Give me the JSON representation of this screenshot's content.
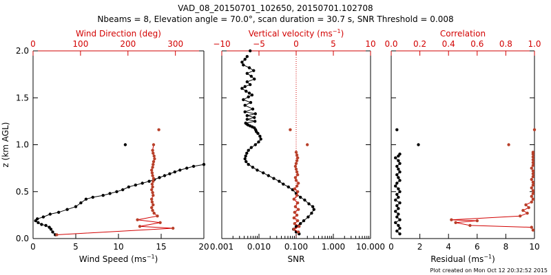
{
  "header": {
    "title_line1": "VAD_08_20150701_102650, 20150701.102708",
    "title_line2": "Nbeams = 8, Elevation angle = 70.0°, scan duration = 30.7 s, SNR Threshold = 0.008"
  },
  "footer": {
    "stamp": "Plot created on Mon Oct 12 20:32:52 2015"
  },
  "colors": {
    "black": "#000000",
    "red": "#d20000",
    "red_marker": "#b8402a"
  },
  "chart_data": [
    {
      "type": "line",
      "panel": "left",
      "ylabel": "z (km AGL)",
      "ylim": [
        0,
        2.0
      ],
      "yticks": [
        0.0,
        0.5,
        1.0,
        1.5,
        2.0
      ],
      "ytick_labels": [
        "0.0",
        "0.5",
        "1.0",
        "1.5",
        "2.0"
      ],
      "bottom_axis": {
        "label_text": "Wind Speed (ms",
        "label_sup": "−1",
        "label_tail": ")",
        "range": [
          0,
          20
        ],
        "ticks": [
          0,
          5,
          10,
          15,
          20
        ],
        "tick_labels": [
          "0",
          "5",
          "10",
          "15",
          "20"
        ],
        "color": "#000000"
      },
      "top_axis": {
        "label_text": "Wind Direction (deg)",
        "label_sup": "",
        "label_tail": "",
        "range": [
          0,
          360
        ],
        "ticks": [
          0,
          100,
          200,
          300
        ],
        "tick_labels": [
          "0",
          "100",
          "200",
          "300"
        ],
        "color": "#d20000"
      },
      "series": [
        {
          "axis": "bottom",
          "color": "#000000",
          "x": [
            2.6,
            2.3,
            2.1,
            1.9,
            1.5,
            1.0,
            0.6,
            0.3,
            0.5,
            1.2,
            2.0,
            3.0,
            4.0,
            5.0,
            5.6,
            6.2,
            7.0,
            8.2,
            9.0,
            9.8,
            10.5,
            11.2,
            12.0,
            12.8,
            13.6,
            14.2,
            14.8,
            15.4,
            16.0,
            16.6,
            17.2,
            18.0,
            18.8,
            20.0
          ],
          "y": [
            0.04,
            0.07,
            0.1,
            0.12,
            0.14,
            0.15,
            0.17,
            0.19,
            0.21,
            0.23,
            0.26,
            0.28,
            0.31,
            0.34,
            0.38,
            0.42,
            0.44,
            0.46,
            0.48,
            0.5,
            0.52,
            0.55,
            0.57,
            0.59,
            0.61,
            0.63,
            0.65,
            0.67,
            0.69,
            0.71,
            0.73,
            0.75,
            0.77,
            0.79
          ]
        },
        {
          "axis": "bottom",
          "color": "#000000",
          "isolated": true,
          "x": [
            10.8
          ],
          "y": [
            1.0
          ]
        },
        {
          "axis": "top",
          "color": "#d20000",
          "marker_color": "#b8402a",
          "x": [
            50,
            295,
            225,
            268,
            220,
            262,
            255,
            252,
            250,
            253,
            251,
            250,
            253,
            252,
            250,
            252,
            251,
            253,
            254,
            252,
            251,
            250,
            252,
            253,
            254,
            256,
            255,
            253,
            252,
            254
          ],
          "y": [
            0.04,
            0.11,
            0.13,
            0.17,
            0.2,
            0.24,
            0.27,
            0.3,
            0.33,
            0.36,
            0.39,
            0.42,
            0.46,
            0.49,
            0.52,
            0.55,
            0.58,
            0.61,
            0.64,
            0.67,
            0.7,
            0.73,
            0.76,
            0.79,
            0.82,
            0.85,
            0.88,
            0.91,
            0.94,
            1.0
          ]
        },
        {
          "axis": "top",
          "color": "#b8402a",
          "isolated": true,
          "x": [
            265
          ],
          "y": [
            1.16
          ]
        }
      ]
    },
    {
      "type": "line",
      "panel": "middle",
      "ylim": [
        0,
        2.0
      ],
      "yticks": [
        0.0,
        0.5,
        1.0,
        1.5,
        2.0
      ],
      "bottom_axis": {
        "label_text": "SNR",
        "label_sup": "",
        "label_tail": "",
        "scale": "log",
        "range": [
          0.001,
          10.0
        ],
        "ticks": [
          0.001,
          0.01,
          0.1,
          1.0,
          10.0
        ],
        "tick_labels": [
          "0.001",
          "0.010",
          "0.100",
          "1.000",
          "10.000"
        ],
        "color": "#000000"
      },
      "top_axis": {
        "label_text": "Vertical velocity (ms",
        "label_sup": "−1",
        "label_tail": ")",
        "range": [
          -10,
          10
        ],
        "ticks": [
          -10,
          -5,
          0,
          5,
          10
        ],
        "tick_labels": [
          "−10",
          "−5",
          "0",
          "5",
          "10"
        ],
        "color": "#d20000"
      },
      "reference_line": {
        "axis": "top",
        "x": 0,
        "style": "dotted",
        "color": "#d20000"
      },
      "series": [
        {
          "axis": "bottom",
          "color": "#000000",
          "x": [
            0.12,
            0.1,
            0.085,
            0.1,
            0.13,
            0.16,
            0.21,
            0.26,
            0.3,
            0.28,
            0.22,
            0.17,
            0.13,
            0.1,
            0.08,
            0.062,
            0.045,
            0.035,
            0.025,
            0.018,
            0.013,
            0.009,
            0.0068,
            0.0052,
            0.0045,
            0.0042,
            0.0044,
            0.0047,
            0.0052,
            0.0062,
            0.008,
            0.0098,
            0.0112,
            0.0106,
            0.0094,
            0.0085,
            0.0081,
            0.0075,
            0.0066,
            0.0058,
            0.0051,
            0.0047,
            0.0044,
            0.0078,
            0.0048,
            0.0075,
            0.0048,
            0.008,
            0.0042,
            0.0068,
            0.0042,
            0.006,
            0.0038,
            0.0052,
            0.0065,
            0.0055,
            0.0045,
            0.0035,
            0.0042,
            0.0058,
            0.0048,
            0.0075,
            0.0062,
            0.0048,
            0.0072,
            0.0055,
            0.0038,
            0.0035,
            0.0042,
            0.0048
          ],
          "y": [
            0.05,
            0.07,
            0.1,
            0.13,
            0.16,
            0.19,
            0.23,
            0.27,
            0.31,
            0.34,
            0.37,
            0.41,
            0.44,
            0.48,
            0.52,
            0.55,
            0.58,
            0.61,
            0.64,
            0.67,
            0.7,
            0.73,
            0.76,
            0.79,
            0.82,
            0.85,
            0.88,
            0.91,
            0.94,
            0.97,
            1.0,
            1.03,
            1.06,
            1.09,
            1.12,
            1.14,
            1.16,
            1.18,
            1.19,
            1.2,
            1.21,
            1.22,
            1.23,
            1.25,
            1.27,
            1.29,
            1.31,
            1.33,
            1.35,
            1.38,
            1.42,
            1.45,
            1.48,
            1.51,
            1.53,
            1.55,
            1.57,
            1.6,
            1.62,
            1.64,
            1.67,
            1.7,
            1.73,
            1.76,
            1.79,
            1.82,
            1.85,
            1.88,
            1.91,
            1.94
          ]
        },
        {
          "axis": "bottom",
          "color": "#000000",
          "isolated": true,
          "x": [
            0.0058
          ],
          "y": [
            2.0
          ]
        },
        {
          "axis": "top",
          "color": "#d20000",
          "marker_color": "#b8402a",
          "x": [
            0.3,
            -0.3,
            0.4,
            -0.2,
            0.2,
            -0.3,
            0.1,
            -0.2,
            0.3,
            -0.1,
            0.2,
            -0.3,
            0.1,
            0.2,
            -0.2,
            0.1,
            0.3,
            0.0,
            -0.1,
            0.2,
            0.1,
            0.0,
            -0.1,
            0.0,
            0.1,
            0.2,
            0.1,
            0.0
          ],
          "y": [
            0.07,
            0.1,
            0.13,
            0.16,
            0.19,
            0.22,
            0.25,
            0.28,
            0.31,
            0.34,
            0.38,
            0.42,
            0.46,
            0.5,
            0.53,
            0.56,
            0.59,
            0.62,
            0.65,
            0.68,
            0.71,
            0.74,
            0.77,
            0.8,
            0.83,
            0.86,
            0.89,
            0.92
          ]
        },
        {
          "axis": "top",
          "color": "#b8402a",
          "isolated": true,
          "x": [
            -0.8,
            1.5
          ],
          "y": [
            1.16,
            1.0
          ]
        }
      ]
    },
    {
      "type": "line",
      "panel": "right",
      "ylim": [
        0,
        2.0
      ],
      "yticks": [
        0.0,
        0.5,
        1.0,
        1.5,
        2.0
      ],
      "bottom_axis": {
        "label_text": "Residual (ms",
        "label_sup": "−1",
        "label_tail": ")",
        "range": [
          0,
          10
        ],
        "ticks": [
          0,
          2,
          4,
          6,
          8,
          10
        ],
        "tick_labels": [
          "0",
          "2",
          "4",
          "6",
          "8",
          "10"
        ],
        "color": "#000000"
      },
      "top_axis": {
        "label_text": "Correlation",
        "label_sup": "",
        "label_tail": "",
        "range": [
          0.0,
          1.0
        ],
        "ticks": [
          0.0,
          0.2,
          0.4,
          0.6,
          0.8,
          1.0
        ],
        "tick_labels": [
          "0.0",
          "0.2",
          "0.4",
          "0.6",
          "0.8",
          "1.0"
        ],
        "color": "#d20000"
      },
      "series": [
        {
          "axis": "bottom",
          "color": "#000000",
          "x": [
            0.6,
            0.4,
            0.6,
            0.5,
            0.3,
            0.6,
            0.4,
            0.5,
            0.3,
            0.5,
            0.4,
            0.6,
            0.3,
            0.5,
            0.4,
            0.6,
            0.5,
            0.3,
            0.4,
            0.6,
            0.5,
            0.4,
            0.6,
            0.5,
            0.4,
            0.6,
            0.5,
            0.3,
            0.5,
            0.6
          ],
          "y": [
            0.05,
            0.08,
            0.11,
            0.14,
            0.17,
            0.2,
            0.23,
            0.26,
            0.29,
            0.32,
            0.35,
            0.38,
            0.41,
            0.44,
            0.47,
            0.5,
            0.53,
            0.56,
            0.59,
            0.62,
            0.65,
            0.68,
            0.71,
            0.74,
            0.77,
            0.8,
            0.83,
            0.86,
            0.88,
            0.9
          ]
        },
        {
          "axis": "bottom",
          "color": "#000000",
          "isolated": true,
          "x": [
            0.4,
            1.9
          ],
          "y": [
            1.16,
            1.0
          ]
        },
        {
          "axis": "top",
          "color": "#d20000",
          "marker_color": "#b8402a",
          "x": [
            0.99,
            0.98,
            0.55,
            0.45,
            0.6,
            0.42,
            0.9,
            0.95,
            0.92,
            0.96,
            0.94,
            0.98,
            0.99,
            0.98,
            0.99,
            0.99,
            0.98,
            0.99,
            0.99,
            0.98,
            0.99,
            0.99,
            0.99,
            0.98,
            0.99,
            0.99,
            0.99,
            0.99,
            0.99,
            0.99
          ],
          "y": [
            0.09,
            0.12,
            0.14,
            0.17,
            0.19,
            0.2,
            0.24,
            0.27,
            0.3,
            0.33,
            0.36,
            0.39,
            0.42,
            0.45,
            0.48,
            0.51,
            0.54,
            0.57,
            0.6,
            0.63,
            0.66,
            0.69,
            0.72,
            0.75,
            0.78,
            0.81,
            0.84,
            0.87,
            0.9,
            0.92
          ]
        },
        {
          "axis": "top",
          "color": "#b8402a",
          "isolated": true,
          "x": [
            0.82,
            1.0
          ],
          "y": [
            1.0,
            1.16
          ]
        }
      ]
    }
  ]
}
